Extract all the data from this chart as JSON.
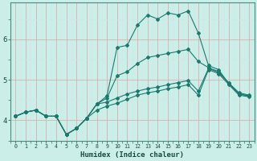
{
  "title": "",
  "xlabel": "Humidex (Indice chaleur)",
  "ylabel": "",
  "bg_color": "#cceee8",
  "grid_color_major": "#b8ddd8",
  "grid_color_minor": "#cce8e4",
  "line_color": "#1a7a6e",
  "xlim": [
    -0.5,
    23.5
  ],
  "ylim": [
    3.5,
    6.9
  ],
  "yticks": [
    4,
    5,
    6
  ],
  "xticks": [
    0,
    1,
    2,
    3,
    4,
    5,
    6,
    7,
    8,
    9,
    10,
    11,
    12,
    13,
    14,
    15,
    16,
    17,
    18,
    19,
    20,
    21,
    22,
    23
  ],
  "series": {
    "line_max": [
      4.1,
      4.2,
      4.25,
      4.1,
      4.1,
      3.65,
      3.8,
      4.05,
      4.4,
      4.6,
      5.8,
      5.85,
      6.35,
      6.6,
      6.5,
      6.65,
      6.6,
      6.7,
      6.15,
      5.35,
      5.25,
      4.9,
      4.65,
      4.6
    ],
    "line_upper": [
      4.1,
      4.2,
      4.25,
      4.1,
      4.1,
      3.65,
      3.8,
      4.05,
      4.4,
      4.55,
      5.1,
      5.2,
      5.4,
      5.55,
      5.6,
      5.65,
      5.7,
      5.75,
      5.45,
      5.3,
      5.2,
      4.92,
      4.65,
      4.6
    ],
    "line_mean": [
      4.1,
      4.2,
      4.25,
      4.1,
      4.1,
      3.65,
      3.8,
      4.05,
      4.4,
      4.45,
      4.55,
      4.65,
      4.72,
      4.78,
      4.82,
      4.88,
      4.93,
      4.98,
      4.72,
      5.28,
      5.18,
      4.92,
      4.68,
      4.62
    ],
    "line_lower": [
      4.1,
      4.2,
      4.25,
      4.1,
      4.1,
      3.65,
      3.8,
      4.05,
      4.25,
      4.35,
      4.42,
      4.52,
      4.62,
      4.68,
      4.72,
      4.78,
      4.82,
      4.88,
      4.62,
      5.25,
      5.15,
      4.88,
      4.62,
      4.58
    ]
  }
}
